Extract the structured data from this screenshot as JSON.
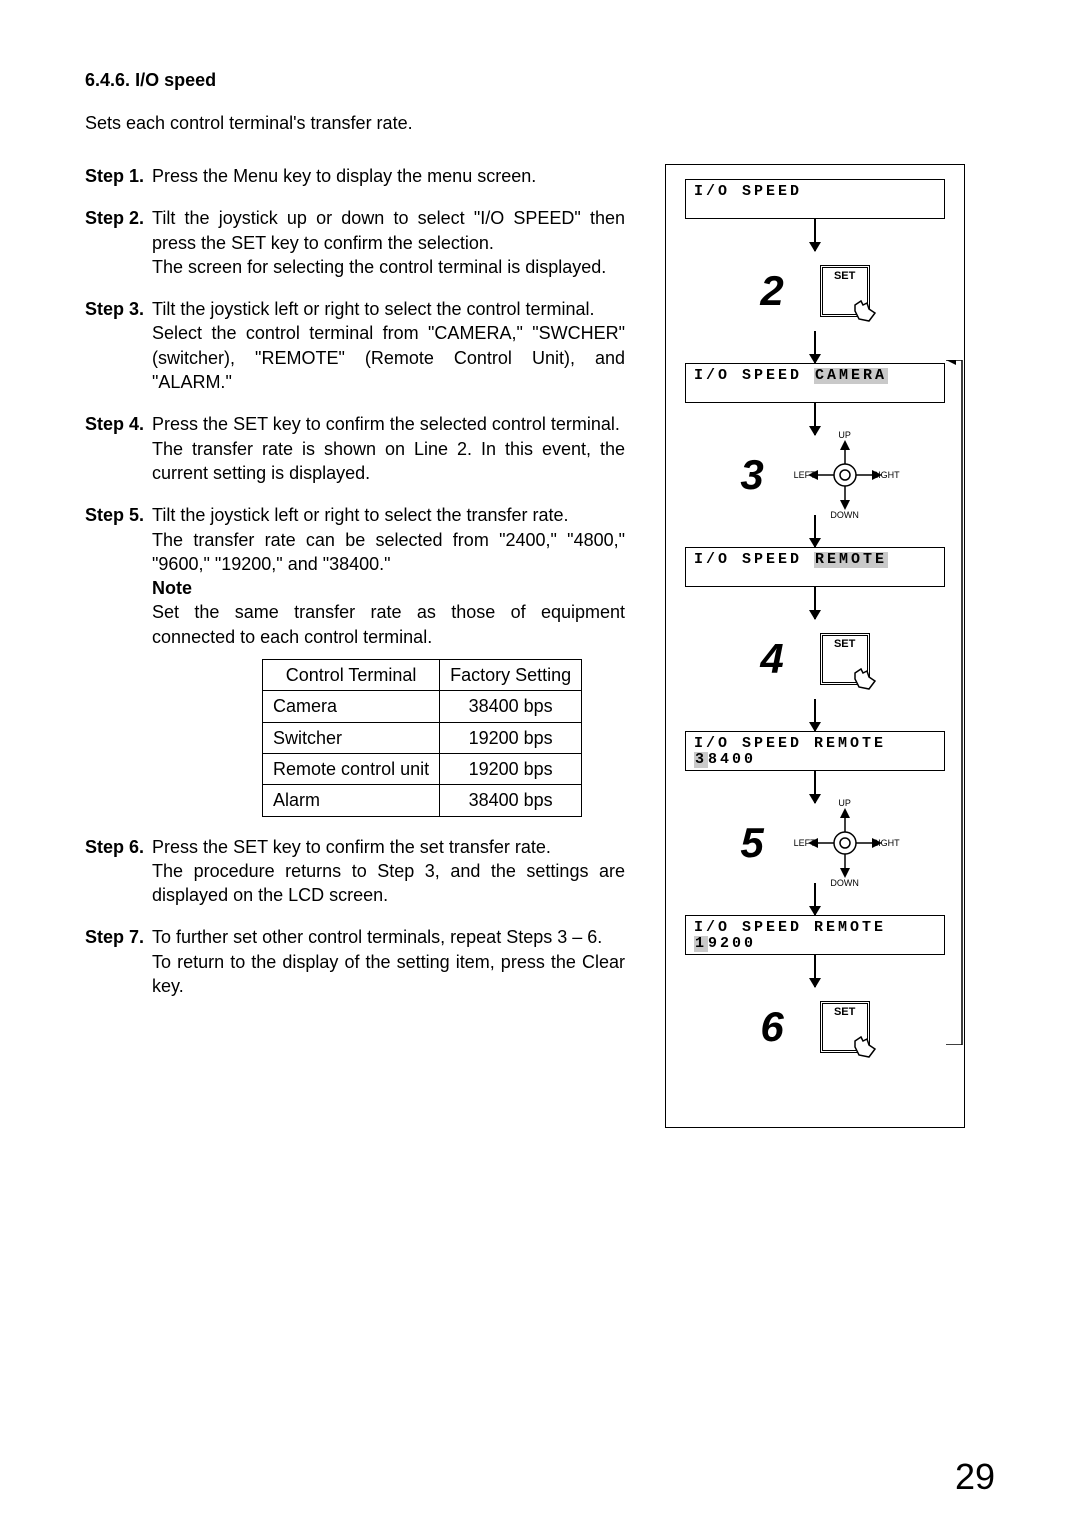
{
  "section": {
    "number": "6.4.6.",
    "title": "I/O speed"
  },
  "intro": "Sets each control terminal's transfer rate.",
  "steps": [
    {
      "label": "Step 1.",
      "body": "Press the Menu key to display the menu screen."
    },
    {
      "label": "Step 2.",
      "body": "Tilt the joystick up or down to select \"I/O SPEED\" then press the SET key to confirm the selection.\nThe screen for selecting the control terminal is displayed."
    },
    {
      "label": "Step 3.",
      "body": "Tilt the joystick left or right to select the control terminal.\nSelect the control terminal from \"CAMERA,\" \"SWCHER\" (switcher), \"REMOTE\" (Remote Control Unit), and \"ALARM.\""
    },
    {
      "label": "Step 4.",
      "body": "Press the SET key to confirm the selected control terminal.\nThe transfer rate is shown on Line 2. In this event, the current setting is displayed."
    },
    {
      "label": "Step 5.",
      "body": "Tilt the joystick left or right to select the transfer rate.\nThe transfer rate can be selected from \"2400,\" \"4800,\" \"9600,\" \"19200,\" and \"38400.\""
    },
    {
      "label": "Step 6.",
      "body": "Press the SET key to confirm the set transfer rate.\nThe procedure returns to Step 3, and the settings are displayed on the LCD screen."
    },
    {
      "label": "Step 7.",
      "body": "To further set other control terminals, repeat Steps 3 – 6.\nTo return to the display of the setting item, press the Clear key."
    }
  ],
  "note": {
    "label": "Note",
    "body": "Set the same transfer rate as those of equipment connected to each control terminal."
  },
  "table": {
    "headers": [
      "Control Terminal",
      "Factory Setting"
    ],
    "rows": [
      [
        "Camera",
        "38400 bps"
      ],
      [
        "Switcher",
        "19200 bps"
      ],
      [
        "Remote control unit",
        "19200 bps"
      ],
      [
        "Alarm",
        "38400 bps"
      ]
    ]
  },
  "diagram": {
    "lcd1": {
      "line1": "I/O SPEED",
      "line2": ""
    },
    "lcd2": {
      "line1_a": "I/O SPEED ",
      "line1_b": "CAMERA",
      "line2": ""
    },
    "lcd3": {
      "line1_a": "I/O SPEED ",
      "line1_b": "REMOTE",
      "line2": ""
    },
    "lcd4": {
      "line1": "I/O SPEED REMOTE",
      "line2_a": "3",
      "line2_b": "8400"
    },
    "lcd5": {
      "line1": "I/O SPEED REMOTE",
      "line2_a": "1",
      "line2_b": "9200"
    },
    "num2": "2",
    "num3": "3",
    "num4": "4",
    "num5": "5",
    "num6": "6",
    "set_label": "SET",
    "joy": {
      "up": "UP",
      "down": "DOWN",
      "left": "LEFT",
      "right": "RIGHT"
    }
  },
  "page_number": "29"
}
